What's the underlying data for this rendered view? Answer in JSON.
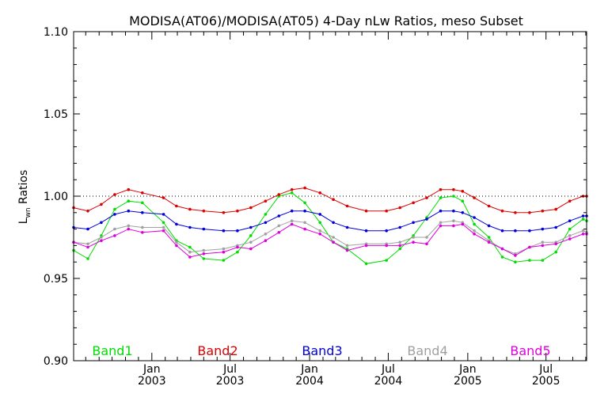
{
  "chart_data": {
    "type": "line",
    "title": "MODISA(AT06)/MODISA(AT05) 4-Day nLw Ratios, meso Subset",
    "ylabel": {
      "main": "L",
      "subscript": "wn",
      "rest": " Ratios"
    },
    "xlabel": "",
    "ylim": [
      0.9,
      1.1
    ],
    "xlim": [
      "2002-07-04",
      "2005-10-03"
    ],
    "yticks": [
      "0.90",
      "0.95",
      "1.00",
      "1.05",
      "1.10"
    ],
    "xticks": [
      {
        "date": "2003-01-01",
        "line1": "Jan",
        "line2": "2003"
      },
      {
        "date": "2003-07-01",
        "line1": "Jul",
        "line2": "2003"
      },
      {
        "date": "2004-01-01",
        "line1": "Jan",
        "line2": "2004"
      },
      {
        "date": "2004-07-01",
        "line1": "Jul",
        "line2": "2004"
      },
      {
        "date": "2005-01-01",
        "line1": "Jan",
        "line2": "2005"
      },
      {
        "date": "2005-07-01",
        "line1": "Jul",
        "line2": "2005"
      }
    ],
    "reference_line": {
      "y": 1.0,
      "style": "dotted"
    },
    "x": [
      "2002-07-04",
      "2002-08-06",
      "2002-09-06",
      "2002-10-07",
      "2002-11-08",
      "2002-12-10",
      "2003-01-28",
      "2003-02-27",
      "2003-03-30",
      "2003-05-01",
      "2003-06-16",
      "2003-07-18",
      "2003-08-18",
      "2003-09-21",
      "2003-10-22",
      "2003-11-21",
      "2003-12-21",
      "2004-01-25",
      "2004-02-25",
      "2004-03-28",
      "2004-05-11",
      "2004-06-27",
      "2004-07-28",
      "2004-08-28",
      "2004-09-28",
      "2004-10-30",
      "2004-11-29",
      "2004-12-20",
      "2005-01-16",
      "2005-02-19",
      "2005-03-22",
      "2005-04-21",
      "2005-05-24",
      "2005-06-23",
      "2005-07-24",
      "2005-08-25",
      "2005-09-25",
      "2005-10-03"
    ],
    "series": [
      {
        "name": "Band1",
        "color": "#00dd00",
        "values": [
          0.967,
          0.962,
          0.976,
          0.992,
          0.997,
          0.996,
          0.984,
          0.973,
          0.969,
          0.962,
          0.961,
          0.966,
          0.976,
          0.989,
          1.0,
          1.002,
          0.996,
          0.984,
          0.972,
          0.968,
          0.959,
          0.961,
          0.968,
          0.976,
          0.987,
          0.999,
          1.0,
          0.997,
          0.983,
          0.975,
          0.963,
          0.96,
          0.961,
          0.961,
          0.966,
          0.98,
          0.986,
          0.985
        ]
      },
      {
        "name": "Band2",
        "color": "#dd0000",
        "values": [
          0.993,
          0.991,
          0.995,
          1.001,
          1.004,
          1.002,
          0.999,
          0.994,
          0.992,
          0.991,
          0.99,
          0.991,
          0.993,
          0.997,
          1.001,
          1.004,
          1.005,
          1.002,
          0.998,
          0.994,
          0.991,
          0.991,
          0.993,
          0.996,
          0.999,
          1.004,
          1.004,
          1.003,
          0.999,
          0.994,
          0.991,
          0.99,
          0.99,
          0.991,
          0.992,
          0.997,
          1.0,
          1.0
        ]
      },
      {
        "name": "Band3",
        "color": "#0000dd",
        "values": [
          0.981,
          0.98,
          0.984,
          0.989,
          0.991,
          0.99,
          0.989,
          0.983,
          0.981,
          0.98,
          0.979,
          0.979,
          0.981,
          0.984,
          0.988,
          0.991,
          0.991,
          0.989,
          0.984,
          0.981,
          0.979,
          0.979,
          0.981,
          0.984,
          0.986,
          0.991,
          0.991,
          0.99,
          0.987,
          0.982,
          0.979,
          0.979,
          0.979,
          0.98,
          0.981,
          0.985,
          0.988,
          0.988
        ]
      },
      {
        "name": "Band4",
        "color": "#a0a0a0",
        "values": [
          0.972,
          0.971,
          0.975,
          0.98,
          0.982,
          0.981,
          0.981,
          0.972,
          0.966,
          0.967,
          0.968,
          0.97,
          0.972,
          0.977,
          0.982,
          0.985,
          0.984,
          0.979,
          0.975,
          0.97,
          0.971,
          0.971,
          0.972,
          0.975,
          0.975,
          0.984,
          0.985,
          0.984,
          0.979,
          0.973,
          0.968,
          0.965,
          0.969,
          0.972,
          0.972,
          0.976,
          0.979,
          0.978
        ]
      },
      {
        "name": "Band5",
        "color": "#dd00dd",
        "values": [
          0.972,
          0.969,
          0.973,
          0.976,
          0.98,
          0.978,
          0.979,
          0.97,
          0.963,
          0.965,
          0.966,
          0.969,
          0.968,
          0.973,
          0.978,
          0.983,
          0.98,
          0.977,
          0.972,
          0.967,
          0.97,
          0.97,
          0.97,
          0.972,
          0.971,
          0.982,
          0.982,
          0.983,
          0.977,
          0.972,
          0.968,
          0.964,
          0.969,
          0.97,
          0.971,
          0.974,
          0.977,
          0.977
        ]
      }
    ],
    "legend_placement": "bottom inside plot, horizontal"
  }
}
